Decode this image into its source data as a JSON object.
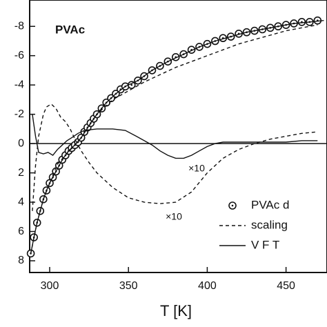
{
  "chart_data": {
    "type": "line",
    "xlabel": "T  [K]",
    "annotations": [
      "PVAc",
      "×10",
      "×10"
    ],
    "xlim": [
      287.3,
      476
    ],
    "ylim": [
      -9.8,
      8.8
    ],
    "y_inverted": true,
    "xticks": [
      300,
      350,
      400,
      450
    ],
    "yticks": [
      -8,
      -6,
      -4,
      -2,
      0,
      2,
      4,
      6,
      8
    ],
    "zero_line": true,
    "legend": "lower right",
    "series": [
      {
        "name": "PVAc d",
        "color": "#111111",
        "marker": "circle-dot",
        "line": "none",
        "x": [
          288,
          290,
          292,
          294,
          296,
          298,
          300,
          302,
          304,
          306,
          308,
          310,
          312,
          314,
          316,
          318,
          320,
          322,
          324,
          326,
          328,
          330,
          333,
          336,
          339,
          342,
          345,
          348,
          352,
          356,
          360,
          365,
          370,
          375,
          380,
          385,
          390,
          395,
          400,
          405,
          410,
          415,
          420,
          425,
          430,
          435,
          440,
          445,
          450,
          455,
          460,
          465,
          470
        ],
        "values": [
          7.5,
          6.4,
          5.4,
          4.6,
          3.8,
          3.2,
          2.7,
          2.3,
          1.9,
          1.5,
          1.1,
          0.8,
          0.5,
          0.3,
          0.1,
          -0.1,
          -0.4,
          -0.8,
          -1.1,
          -1.4,
          -1.7,
          -2.0,
          -2.4,
          -2.8,
          -3.1,
          -3.4,
          -3.7,
          -3.9,
          -4.0,
          -4.3,
          -4.6,
          -5.0,
          -5.3,
          -5.6,
          -5.9,
          -6.1,
          -6.4,
          -6.6,
          -6.8,
          -7.0,
          -7.2,
          -7.3,
          -7.5,
          -7.6,
          -7.7,
          -7.8,
          -7.9,
          -8.0,
          -8.1,
          -8.2,
          -8.3,
          -8.3,
          -8.4
        ]
      },
      {
        "name": "scaling",
        "color": "#111111",
        "line": "dashed",
        "x": [
          288,
          292,
          296,
          300,
          305,
          310,
          315,
          320,
          330,
          340,
          350,
          360,
          370,
          380,
          390,
          400,
          410,
          420,
          430,
          440,
          450,
          460,
          470
        ],
        "values": [
          7.5,
          5.4,
          3.8,
          2.7,
          1.4,
          0.8,
          0.2,
          -0.4,
          -2.0,
          -3.0,
          -3.6,
          -4.2,
          -4.7,
          -5.2,
          -5.6,
          -6.0,
          -6.4,
          -6.8,
          -7.1,
          -7.4,
          -7.7,
          -7.9,
          -8.1
        ]
      },
      {
        "name": "V F T",
        "color": "#111111",
        "line": "solid",
        "x": [
          288,
          290,
          292,
          294,
          296,
          298,
          300,
          304,
          308,
          312,
          316,
          320,
          326,
          330,
          336,
          342,
          348,
          356,
          365,
          375,
          385,
          395,
          405,
          415,
          425,
          435,
          445,
          455,
          465,
          474
        ],
        "values": [
          7.5,
          6.4,
          5.4,
          4.6,
          3.8,
          3.2,
          2.7,
          1.9,
          1.1,
          0.5,
          0.1,
          -0.4,
          -1.4,
          -2.0,
          -2.8,
          -3.4,
          -3.9,
          -4.3,
          -5.0,
          -5.6,
          -6.1,
          -6.6,
          -7.0,
          -7.3,
          -7.6,
          -7.8,
          -8.0,
          -8.2,
          -8.3,
          -8.4
        ]
      },
      {
        "color": "#111111",
        "line": "dashed",
        "x": [
          289,
          291,
          293,
          296,
          298,
          301,
          304,
          307,
          310,
          313,
          316,
          320,
          325,
          330,
          340,
          350,
          360,
          370,
          380,
          390,
          400,
          410,
          420,
          430,
          440,
          450,
          460,
          470
        ],
        "values": [
          4.6,
          1.5,
          -0.5,
          -2.0,
          -2.5,
          -2.7,
          -2.4,
          -1.8,
          -1.5,
          -1.0,
          -0.3,
          0.5,
          1.3,
          2.0,
          3.0,
          3.7,
          4.0,
          4.1,
          4.0,
          3.3,
          2.0,
          1.0,
          0.4,
          0.0,
          -0.3,
          -0.5,
          -0.7,
          -0.8
        ]
      },
      {
        "color": "#111111",
        "line": "solid",
        "x": [
          289,
          291,
          293,
          296,
          299,
          302,
          305,
          308,
          311,
          314,
          318,
          322,
          330,
          340,
          348,
          355,
          360,
          365,
          370,
          375,
          380,
          385,
          390,
          395,
          400,
          405,
          410,
          420,
          430,
          440,
          450,
          460,
          470
        ],
        "values": [
          -2.0,
          -0.5,
          0.6,
          0.7,
          0.6,
          0.8,
          0.4,
          0.1,
          -0.2,
          -0.4,
          -0.7,
          -0.9,
          -1.0,
          -1.0,
          -0.9,
          -0.5,
          -0.2,
          0.1,
          0.5,
          0.8,
          1.0,
          1.0,
          0.8,
          0.5,
          0.2,
          0.0,
          -0.1,
          -0.1,
          -0.1,
          -0.1,
          -0.1,
          -0.2,
          -0.2
        ]
      }
    ]
  }
}
